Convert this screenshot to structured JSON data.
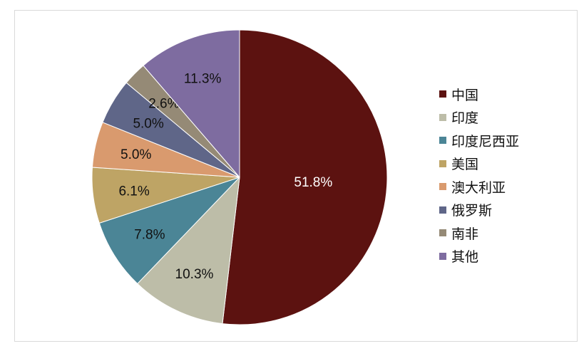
{
  "chart_data": {
    "type": "pie",
    "title": "",
    "start_angle_deg": 0,
    "direction": "clockwise",
    "slices": [
      {
        "label": "中国",
        "value": 51.8,
        "display": "51.8%",
        "color": "#5c1210",
        "label_color": "#ffffff"
      },
      {
        "label": "印度",
        "value": 10.3,
        "display": "10.3%",
        "color": "#bdbda8",
        "label_color": "#111111"
      },
      {
        "label": "印度尼西亚",
        "value": 7.8,
        "display": "7.8%",
        "color": "#4b8596",
        "label_color": "#111111"
      },
      {
        "label": "美国",
        "value": 6.1,
        "display": "6.1%",
        "color": "#bea465",
        "label_color": "#111111"
      },
      {
        "label": "澳大利亚",
        "value": 5.0,
        "display": "5.0%",
        "color": "#d99a6e",
        "label_color": "#111111"
      },
      {
        "label": "俄罗斯",
        "value": 5.0,
        "display": "5.0%",
        "color": "#5f6688",
        "label_color": "#111111"
      },
      {
        "label": "南非",
        "value": 2.6,
        "display": "2.6%",
        "color": "#958a76",
        "label_color": "#111111"
      },
      {
        "label": "其他",
        "value": 11.3,
        "display": "11.3%",
        "color": "#7e6ca0",
        "label_color": "#111111"
      }
    ],
    "legend_position": "right"
  }
}
